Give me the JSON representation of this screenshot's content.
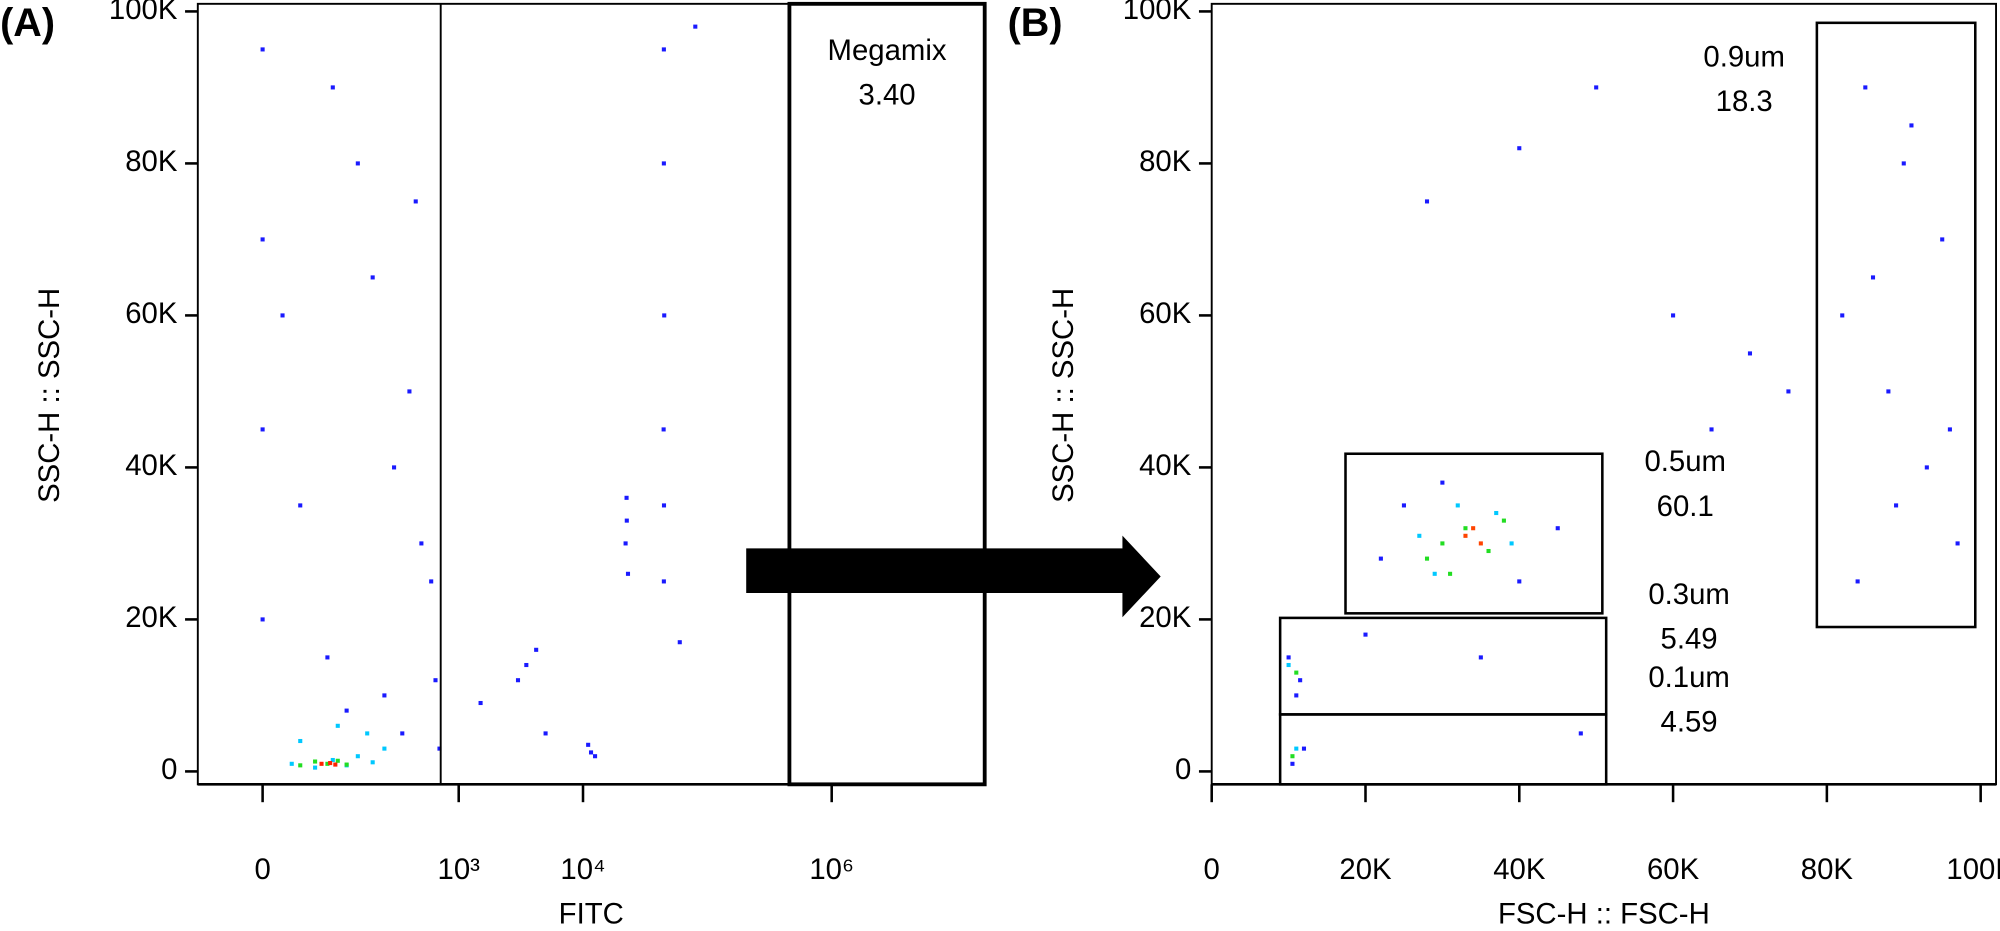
{
  "chart_data": [
    {
      "type": "scatter",
      "panel_label": "(A)",
      "xlabel": "FITC",
      "ylabel": "SSC-H :: SSC-H",
      "xscale": "logicle",
      "xlim": [
        -80,
        17000000
      ],
      "ylim": [
        -1700,
        101000
      ],
      "xticks": [
        {
          "value": 0,
          "label": "0"
        },
        {
          "value": 1000,
          "label": "10³"
        },
        {
          "value": 10000,
          "label": "10⁴"
        },
        {
          "value": 1000000,
          "label": "10⁶"
        }
      ],
      "yticks": [
        {
          "value": 0,
          "label": "0"
        },
        {
          "value": 20000,
          "label": "20K"
        },
        {
          "value": 40000,
          "label": "40K"
        },
        {
          "value": 60000,
          "label": "60K"
        },
        {
          "value": 80000,
          "label": "80K"
        },
        {
          "value": 100000,
          "label": "100K"
        }
      ],
      "reference_lines_x": [
        716
      ],
      "gates": [
        {
          "label": "Megamix",
          "value": 3.4,
          "value_label": "3.40",
          "x": [
            457000,
            17000000
          ],
          "y": [
            -1700,
            101000
          ]
        }
      ],
      "series": [
        {
          "color": "#1a1aff",
          "x": [
            0,
            0,
            0,
            0,
            20,
            150,
            300,
            500,
            80,
            250,
            400,
            600,
            40,
            120,
            350,
            650,
            200,
            90,
            450,
            700,
            44700,
            44700,
            45000,
            44500,
            44800,
            44700,
            22400,
            22000,
            23000,
            22500,
            3500,
            3000,
            4200,
            11600,
            11000,
            12500,
            1500,
            5000,
            60000,
            80000
          ],
          "y": [
            95000,
            70000,
            45000,
            20000,
            60000,
            80000,
            40000,
            30000,
            15000,
            10000,
            50000,
            25000,
            35000,
            8000,
            5000,
            12000,
            65000,
            90000,
            75000,
            3000,
            95000,
            80000,
            60000,
            45000,
            35000,
            25000,
            36000,
            30000,
            26000,
            33000,
            14000,
            12000,
            16000,
            2500,
            3500,
            2000,
            9000,
            5000,
            17000,
            98000
          ]
        },
        {
          "color": "#00c8ff",
          "x": [
            30,
            60,
            90,
            120,
            150,
            200,
            250,
            40,
            100,
            180
          ],
          "y": [
            1000,
            500,
            1500,
            800,
            2000,
            1200,
            3000,
            4000,
            6000,
            5000
          ]
        },
        {
          "color": "#22dd22",
          "x": [
            40,
            60,
            80,
            100,
            120
          ],
          "y": [
            800,
            1300,
            1000,
            1400,
            900
          ]
        },
        {
          "color": "#ff2200",
          "x": [
            70,
            85,
            95
          ],
          "y": [
            1000,
            1100,
            900
          ]
        }
      ]
    },
    {
      "type": "scatter",
      "panel_label": "(B)",
      "xlabel": "FSC-H :: FSC-H",
      "ylabel": "SSC-H :: SSC-H",
      "xscale": "linear",
      "xlim": [
        0,
        102000
      ],
      "ylim": [
        -1700,
        101000
      ],
      "xticks": [
        {
          "value": 0,
          "label": "0"
        },
        {
          "value": 20000,
          "label": "20K"
        },
        {
          "value": 40000,
          "label": "40K"
        },
        {
          "value": 60000,
          "label": "60K"
        },
        {
          "value": 80000,
          "label": "80K"
        },
        {
          "value": 100000,
          "label": "100K"
        }
      ],
      "yticks": [
        {
          "value": 0,
          "label": "0"
        },
        {
          "value": 20000,
          "label": "20K"
        },
        {
          "value": 40000,
          "label": "40K"
        },
        {
          "value": 60000,
          "label": "60K"
        },
        {
          "value": 80000,
          "label": "80K"
        },
        {
          "value": 100000,
          "label": "100K"
        }
      ],
      "gates": [
        {
          "label": "0.9um",
          "value": 18.3,
          "x": [
            78700,
            99300
          ],
          "y": [
            19000,
            98500
          ]
        },
        {
          "label": "0.5um",
          "value": 60.1,
          "x": [
            17400,
            50800
          ],
          "y": [
            20800,
            41800
          ]
        },
        {
          "label": "0.3um",
          "value": 5.49,
          "x": [
            8900,
            51300
          ],
          "y": [
            7500,
            20200
          ]
        },
        {
          "label": "0.1um",
          "value": 4.59,
          "x": [
            8900,
            51300
          ],
          "y": [
            -1700,
            7500
          ]
        }
      ],
      "series": [
        {
          "color": "#1a1aff",
          "x": [
            85000,
            90000,
            95000,
            82000,
            88000,
            93000,
            97000,
            84000,
            91000,
            86000,
            96000,
            89000,
            25000,
            40000,
            30000,
            45000,
            22000,
            10000,
            11000,
            12000,
            10500,
            11500,
            20000,
            35000,
            48000,
            60000,
            70000,
            50000,
            65000,
            75000,
            40000,
            28000
          ],
          "y": [
            90000,
            80000,
            70000,
            60000,
            50000,
            40000,
            30000,
            25000,
            85000,
            65000,
            45000,
            35000,
            35000,
            25000,
            38000,
            32000,
            28000,
            15000,
            10000,
            3000,
            1000,
            12000,
            18000,
            15000,
            5000,
            60000,
            55000,
            90000,
            45000,
            50000,
            82000,
            75000
          ]
        },
        {
          "color": "#00c8ff",
          "x": [
            27000,
            39000,
            29000,
            37000,
            32000,
            10000,
            11000
          ],
          "y": [
            31000,
            30000,
            26000,
            34000,
            35000,
            14000,
            3000
          ]
        },
        {
          "color": "#22dd22",
          "x": [
            30000,
            33000,
            36000,
            28000,
            38000,
            31000,
            11000,
            10500
          ],
          "y": [
            30000,
            32000,
            29000,
            28000,
            33000,
            26000,
            13000,
            2000
          ]
        },
        {
          "color": "#ff4400",
          "x": [
            33000,
            35000,
            34000
          ],
          "y": [
            31000,
            30000,
            32000
          ]
        }
      ]
    }
  ]
}
